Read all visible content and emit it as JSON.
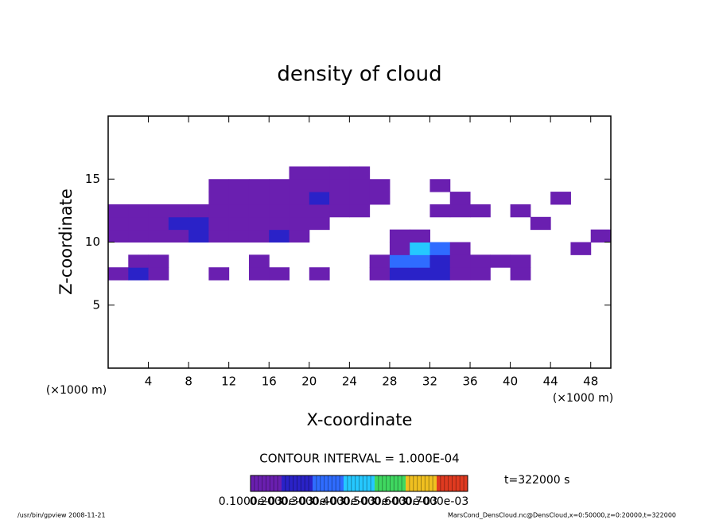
{
  "chart_data": {
    "type": "contour",
    "title": "density of cloud",
    "x_label": "X-coordinate",
    "y_label": "Z-coordinate",
    "x_unit": "(×1000 m)",
    "x_unit_right": "(×1000 m)",
    "xlim": [
      0,
      50
    ],
    "ylim": [
      0,
      20
    ],
    "xticks": [
      4,
      8,
      12,
      16,
      20,
      24,
      28,
      32,
      36,
      40,
      44,
      48
    ],
    "yticks": [
      5,
      10,
      15
    ],
    "x": [
      1,
      3,
      5,
      7,
      9,
      11,
      13,
      15,
      17,
      19,
      21,
      23,
      25,
      27,
      29,
      31,
      33,
      35,
      37,
      39,
      41,
      43,
      45,
      47,
      49
    ],
    "z": [
      7.5,
      8.5,
      9.5,
      10.5,
      11.5,
      12.5,
      13.5,
      14.5,
      15.5
    ],
    "values": [
      [
        0.0001,
        0.0002,
        0.0001,
        0,
        0,
        0.0001,
        0,
        0.0001,
        0.0001,
        0,
        0.0001,
        0,
        0,
        0.0001,
        0.0002,
        0.0002,
        0.0002,
        0.0001,
        0.0001,
        0,
        0.0001,
        0,
        0,
        0,
        0
      ],
      [
        0,
        0.0001,
        0.0001,
        0,
        0,
        0,
        0,
        0.0001,
        0,
        0,
        0,
        0,
        0,
        0.0001,
        0.0003,
        0.0003,
        0.0002,
        0.0001,
        0.0001,
        0.0001,
        0.0001,
        0,
        0,
        0,
        0
      ],
      [
        0,
        0,
        0,
        0,
        0,
        0,
        0,
        0,
        0,
        0,
        0,
        0,
        0,
        0,
        0.0001,
        0.0004,
        0.0003,
        0.0001,
        0,
        0,
        0,
        0,
        0,
        0.0001,
        0
      ],
      [
        0.0001,
        0.0001,
        0.0001,
        0.0001,
        0.0002,
        0.0001,
        0.0001,
        0.0001,
        0.0002,
        0.0001,
        0,
        0,
        0,
        0,
        0.0001,
        0.0001,
        0,
        0,
        0,
        0,
        0,
        0,
        0,
        0,
        0.0001
      ],
      [
        0.0001,
        0.0001,
        0.0001,
        0.0002,
        0.0002,
        0.0001,
        0.0001,
        0.0001,
        0.0001,
        0.0001,
        0.0001,
        0,
        0,
        0,
        0,
        0,
        0,
        0,
        0,
        0,
        0,
        0.0001,
        0,
        0,
        0
      ],
      [
        0.0001,
        0.0001,
        0.0001,
        0.0001,
        0.0001,
        0.0001,
        0.0001,
        0.0001,
        0.0001,
        0.0001,
        0.0001,
        0.0001,
        0.0001,
        0,
        0,
        0,
        0.0001,
        0.0001,
        0.0001,
        0,
        0.0001,
        0,
        0,
        0,
        0
      ],
      [
        0,
        0,
        0,
        0,
        0,
        0.0001,
        0.0001,
        0.0001,
        0.0001,
        0.0001,
        0.0002,
        0.0001,
        0.0001,
        0.0001,
        0,
        0,
        0,
        0.0001,
        0,
        0,
        0,
        0,
        0.0001,
        0,
        0
      ],
      [
        0,
        0,
        0,
        0,
        0,
        0.0001,
        0.0001,
        0.0001,
        0.0001,
        0.0001,
        0.0001,
        0.0001,
        0.0001,
        0.0001,
        0,
        0,
        0.0001,
        0,
        0,
        0,
        0,
        0,
        0,
        0,
        0
      ],
      [
        0,
        0,
        0,
        0,
        0,
        0,
        0,
        0,
        0,
        0.0001,
        0.0001,
        0.0001,
        0.0001,
        0,
        0,
        0,
        0,
        0,
        0,
        0,
        0,
        0,
        0,
        0,
        0
      ]
    ],
    "contour_interval": "CONTOUR INTERVAL = 1.000E-04",
    "time_label": "t=322000 s",
    "colorbar": {
      "levels": [
        {
          "value": 0.0001,
          "label": "0.1000e-03"
        },
        {
          "value": 0.0002,
          "label": "0.2000e-03"
        },
        {
          "value": 0.0003,
          "label": "0.3000e-03"
        },
        {
          "value": 0.0004,
          "label": "0.4000e-03"
        },
        {
          "value": 0.0005,
          "label": "0.5000e-03"
        },
        {
          "value": 0.0006,
          "label": "0.6000e-03"
        },
        {
          "value": 0.0007,
          "label": "0.7000e-03"
        }
      ],
      "colors": [
        "#6a1fb0",
        "#2a22c8",
        "#2f6cff",
        "#25c8ff",
        "#3fd860",
        "#f0c020",
        "#e03a20"
      ]
    },
    "footer_left": "/usr/bin/gpview   2008-11-21",
    "footer_right": "MarsCond_DensCloud.nc@DensCloud,x=0:50000,z=0:20000,t=322000"
  }
}
